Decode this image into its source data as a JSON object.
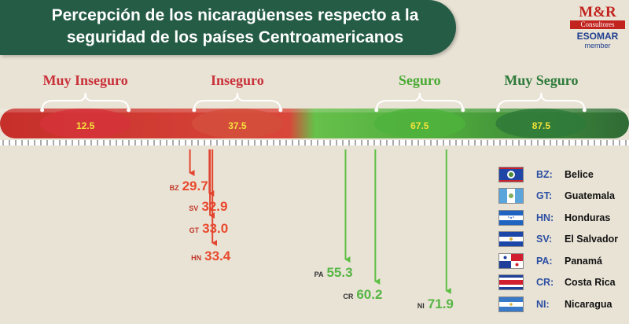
{
  "header": {
    "title_line1": "Percepción de los nicaragüenses respecto a la",
    "title_line2": "seguridad de los países Centroamericanos"
  },
  "logo": {
    "mark": "M&R",
    "sub": "Consultores",
    "esomar": "ESOMAR",
    "member": "member"
  },
  "chart_data": {
    "type": "scatter",
    "title": "Percepción de los nicaragüenses respecto a la seguridad de los países Centroamericanos",
    "scale": [
      0,
      100
    ],
    "categories": [
      {
        "label": "Muy Inseguro",
        "midpoint": 12.5,
        "color": "#d5343a"
      },
      {
        "label": "Inseguro",
        "midpoint": 37.5,
        "color": "#d44f3c"
      },
      {
        "label": "Seguro",
        "midpoint": 67.5,
        "color": "#4fb33c"
      },
      {
        "label": "Muy Seguro",
        "midpoint": 87.5,
        "color": "#2f7a3a"
      }
    ],
    "countries": [
      {
        "code": "BZ",
        "value": 29.7
      },
      {
        "code": "SV",
        "value": 32.9
      },
      {
        "code": "GT",
        "value": 33.0
      },
      {
        "code": "HN",
        "value": 33.4
      },
      {
        "code": "PA",
        "value": 55.3
      },
      {
        "code": "CR",
        "value": 60.2
      },
      {
        "code": "NI",
        "value": 71.9
      }
    ]
  },
  "legend": {
    "items": [
      {
        "code": "BZ:",
        "name": "Belice",
        "flag": "belize"
      },
      {
        "code": "GT:",
        "name": "Guatemala",
        "flag": "guatemala"
      },
      {
        "code": "HN:",
        "name": "Honduras",
        "flag": "honduras"
      },
      {
        "code": "SV:",
        "name": "El Salvador",
        "flag": "el-salvador"
      },
      {
        "code": "PA:",
        "name": "Panamá",
        "flag": "panama"
      },
      {
        "code": "CR:",
        "name": "Costa Rica",
        "flag": "costa-rica"
      },
      {
        "code": "NI:",
        "name": "Nicaragua",
        "flag": "nicaragua"
      }
    ]
  },
  "colors": {
    "unsafe_text": "#e8492e",
    "safe_text": "#55b544",
    "unsafe_arrow": "#e2452f",
    "safe_arrow": "#5cbf44",
    "label_unsafe": "#c9323a",
    "label_safe": "#4aaa35",
    "label_verysafe": "#2d7a3a"
  }
}
